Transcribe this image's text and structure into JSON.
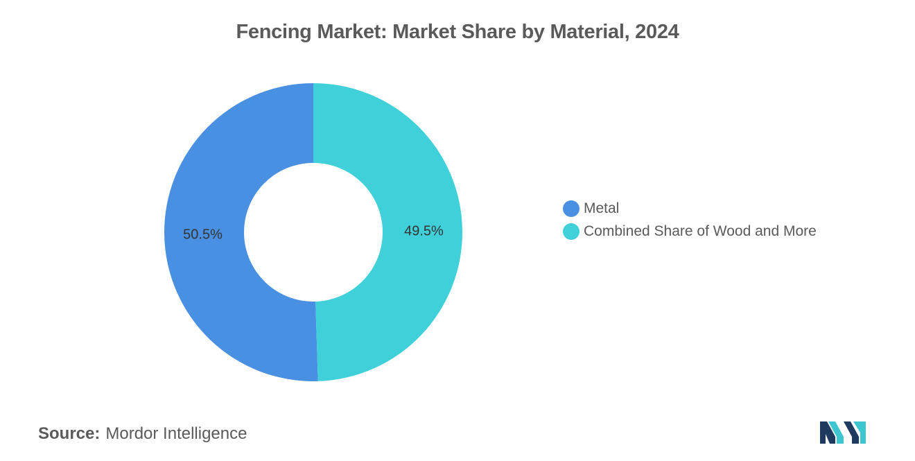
{
  "title": "Fencing Market: Market Share by Material, 2024",
  "chart_data": {
    "type": "pie",
    "subtype": "donut",
    "title": "Fencing Market: Market Share by Material, 2024",
    "categories": [
      "Metal",
      "Combined Share of Wood and More"
    ],
    "values": [
      50.5,
      49.5
    ],
    "data_labels": [
      "50.5%",
      "49.5%"
    ],
    "unit": "%",
    "colors": [
      "#4a90e2",
      "#40d0da"
    ],
    "legend_position": "right"
  },
  "legend": {
    "items": [
      {
        "label": "Metal",
        "color": "#4a90e2"
      },
      {
        "label": "Combined Share of Wood and More",
        "color": "#40d0da"
      }
    ]
  },
  "source": {
    "label": "Source:",
    "text": "Mordor Intelligence"
  },
  "logo": {
    "icon": "mordor-intelligence-logo-icon",
    "colors": [
      "#1e3a5f",
      "#3ec6d0"
    ]
  }
}
